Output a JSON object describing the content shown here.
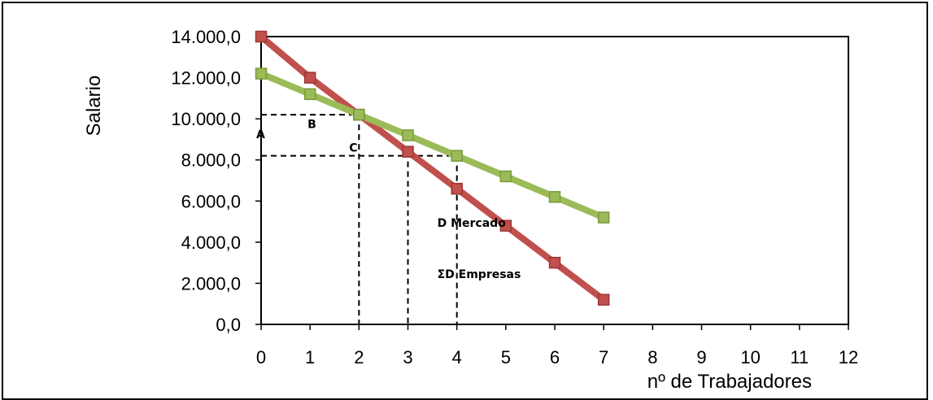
{
  "chart_data": {
    "type": "line",
    "title": "",
    "xlabel": "nº de Trabajadores",
    "ylabel": "Salario",
    "x": [
      0,
      1,
      2,
      3,
      4,
      5,
      6,
      7
    ],
    "xlim": [
      0,
      12
    ],
    "ylim": [
      0,
      14000
    ],
    "xticks": [
      "0",
      "1",
      "2",
      "3",
      "4",
      "5",
      "6",
      "7",
      "8",
      "9",
      "10",
      "11",
      "12"
    ],
    "yticks": [
      "0,0",
      "2.000,0",
      "4.000,0",
      "6.000,0",
      "8.000,0",
      "10.000,0",
      "12.000,0",
      "14.000,0"
    ],
    "grid": false,
    "series": [
      {
        "values": [
          14000,
          12000,
          10200,
          8400,
          6600,
          4800,
          3000,
          1200
        ],
        "color": "#C0504D",
        "marker": "square"
      },
      {
        "values": [
          12200,
          11200,
          10200,
          9200,
          8200,
          7200,
          6200,
          5200
        ],
        "color": "#9BBB59",
        "marker": "square"
      }
    ],
    "reference_lines": [
      {
        "type": "horizontal",
        "y": 10200,
        "x_to": 2
      },
      {
        "type": "horizontal",
        "y": 8200,
        "x_to": 4
      },
      {
        "type": "vertical",
        "x": 2,
        "y_to": 10200
      },
      {
        "type": "vertical",
        "x": 3,
        "y_to": 8400
      },
      {
        "type": "vertical",
        "x": 4,
        "y_to": 8200
      }
    ],
    "annotations": [
      "A",
      "B",
      "C",
      "D Mercado",
      "ΣD Empresas"
    ]
  }
}
